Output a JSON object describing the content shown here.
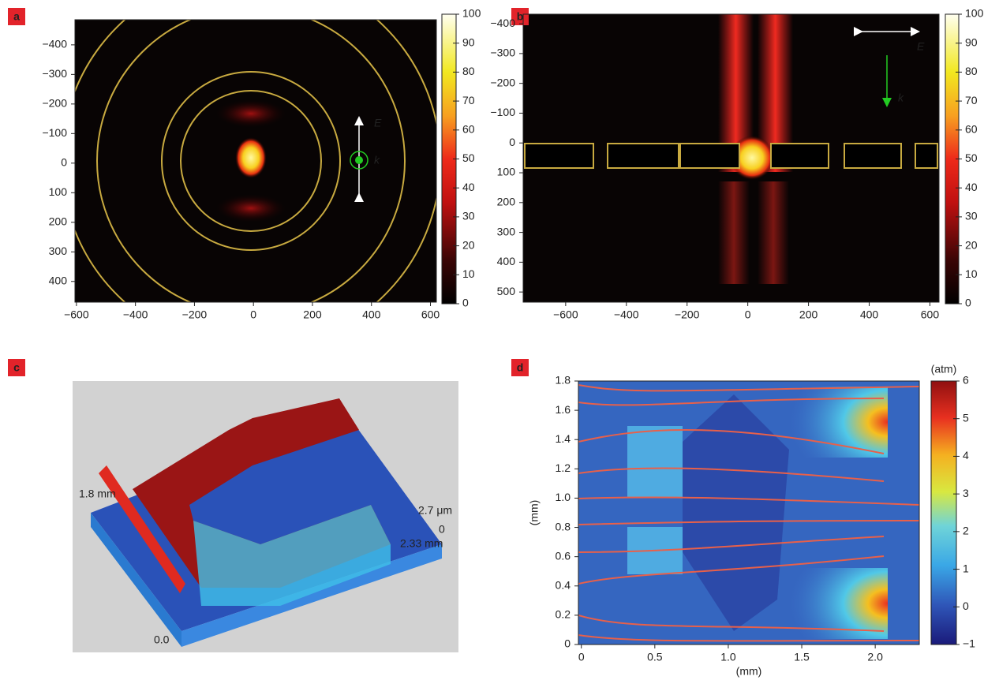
{
  "chart_data": [
    {
      "type": "heatmap",
      "label": "a",
      "xlim": [
        -605,
        620
      ],
      "ylim": [
        470,
        -485
      ],
      "xticks": [
        {
          "value": -600,
          "label": "−600"
        },
        {
          "value": -400,
          "label": "−400"
        },
        {
          "value": -200,
          "label": "−200"
        },
        0,
        200,
        400,
        600
      ],
      "yticks": [
        {
          "value": -400,
          "label": "−400"
        },
        {
          "value": -300,
          "label": "−300"
        },
        {
          "value": -200,
          "label": "−200"
        },
        {
          "value": -100,
          "label": "−100"
        },
        0,
        100,
        200,
        300,
        400
      ],
      "colorbar": {
        "lim": [
          0,
          100
        ],
        "ticks": [
          0,
          10,
          20,
          30,
          40,
          50,
          60,
          70,
          80,
          90,
          100
        ]
      },
      "annotations": [
        "E",
        "k"
      ]
    },
    {
      "type": "heatmap",
      "label": "b",
      "xlim": [
        -740,
        630
      ],
      "ylim": [
        534,
        -432
      ],
      "xticks": [
        {
          "value": -600,
          "label": "−600"
        },
        {
          "value": -400,
          "label": "−400"
        },
        {
          "value": -200,
          "label": "−200"
        },
        0,
        200,
        400,
        600
      ],
      "yticks": [
        {
          "value": -400,
          "label": "−400"
        },
        {
          "value": -300,
          "label": "−300"
        },
        {
          "value": -200,
          "label": "−200"
        },
        {
          "value": -100,
          "label": "−100"
        },
        0,
        100,
        200,
        300,
        400,
        500
      ],
      "colorbar": {
        "lim": [
          0,
          100
        ],
        "ticks": [
          0,
          10,
          20,
          30,
          40,
          50,
          60,
          70,
          80,
          90,
          100
        ]
      },
      "annotations": [
        "E",
        "k"
      ]
    },
    {
      "type": "surface",
      "label": "c",
      "annotations": [
        "1.8 mm",
        "2.7 μm",
        "0",
        "2.33 mm",
        "0.0"
      ]
    },
    {
      "type": "heatmap",
      "label": "d",
      "xlim": [
        -0.02,
        2.3
      ],
      "ylim": [
        0,
        1.8
      ],
      "xlabel": "(mm)",
      "ylabel": "(mm)",
      "xticks": [
        0,
        0.5,
        {
          "value": 1,
          "label": "1.0"
        },
        1.5,
        {
          "value": 2,
          "label": "2.0"
        }
      ],
      "yticks": [
        0,
        0.2,
        0.4,
        0.6,
        0.8,
        {
          "value": 1,
          "label": "1.0"
        },
        1.2,
        1.4,
        1.6,
        1.8
      ],
      "colorbar": {
        "label": "(atm)",
        "lim": [
          -1,
          6
        ],
        "ticks": [
          {
            "value": -1,
            "label": "−1"
          },
          0,
          1,
          2,
          3,
          4,
          5,
          6
        ]
      }
    }
  ]
}
